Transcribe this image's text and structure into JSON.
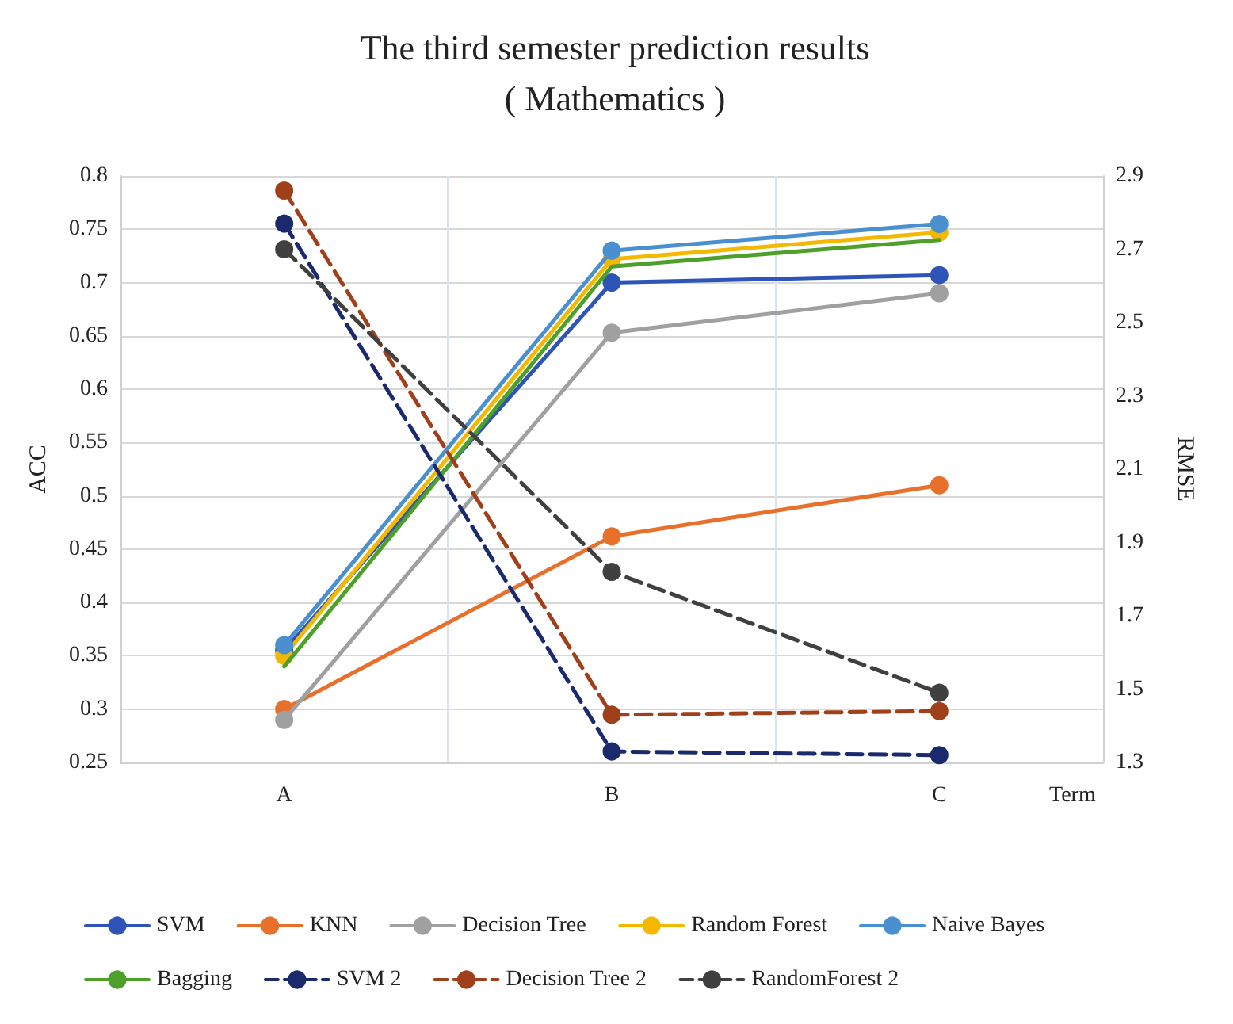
{
  "chart_data": {
    "type": "line",
    "title": "The third semester prediction results",
    "subtitle": "( Mathematics )",
    "xlabel": "Term",
    "ylabel": "ACC",
    "y2label": "RMSE",
    "categories": [
      "A",
      "B",
      "C"
    ],
    "ylim": [
      0.25,
      0.8
    ],
    "yticks": [
      0.25,
      0.3,
      0.35,
      0.4,
      0.45,
      0.5,
      0.55,
      0.6,
      0.65,
      0.7,
      0.75,
      0.8
    ],
    "y2lim": [
      1.3,
      2.9
    ],
    "y2ticks": [
      1.3,
      1.5,
      1.7,
      1.9,
      2.1,
      2.3,
      2.5,
      2.7,
      2.9
    ],
    "grid": "y",
    "legend": "bottom",
    "marker": "circle",
    "line_style": "solid",
    "series": [
      {
        "name": "SVM",
        "color": "#2e54b8",
        "values": [
          0.355,
          0.7,
          0.707
        ]
      },
      {
        "name": "KNN",
        "color": "#e8702a",
        "values": [
          0.3,
          0.462,
          0.51
        ]
      },
      {
        "name": "Decision Tree",
        "color": "#a0a0a0",
        "values": [
          0.29,
          0.653,
          0.69
        ]
      },
      {
        "name": "Random Forest",
        "color": "#f5b800",
        "values": [
          0.35,
          0.722,
          0.747
        ]
      },
      {
        "name": "Naive Bayes",
        "color": "#4a90d0",
        "values": [
          0.36,
          0.73,
          0.755
        ]
      },
      {
        "name": "Bagging",
        "color": "#4fa02a",
        "marker": "none",
        "values": [
          0.34,
          0.715,
          0.74
        ]
      },
      {
        "name": "SVM 2",
        "color": "#1a2a6c",
        "axis": "y2",
        "line_style": "dashed",
        "values": [
          2.77,
          1.33,
          1.32
        ]
      },
      {
        "name": "Decision Tree 2",
        "color": "#a0401a",
        "axis": "y2",
        "line_style": "dashed",
        "values": [
          2.86,
          1.43,
          1.44
        ]
      },
      {
        "name": "RandomForest 2",
        "color": "#404040",
        "axis": "y2",
        "line_style": "dashed",
        "values": [
          2.7,
          1.82,
          1.49
        ]
      }
    ]
  }
}
